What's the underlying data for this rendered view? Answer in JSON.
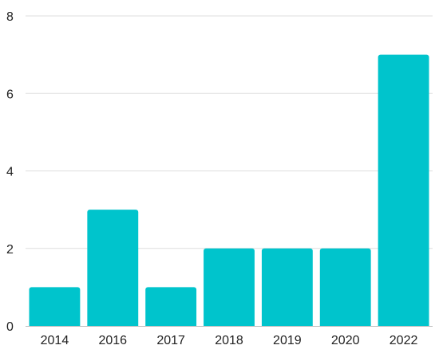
{
  "chart_data": {
    "type": "bar",
    "title": "",
    "xlabel": "",
    "ylabel": "",
    "categories": [
      "2014",
      "2016",
      "2017",
      "2018",
      "2019",
      "2020",
      "2022"
    ],
    "values": [
      1,
      3,
      1,
      2,
      2,
      2,
      7
    ],
    "ylim": [
      0,
      8
    ],
    "yticks": [
      0,
      2,
      4,
      6,
      8
    ],
    "grid": true,
    "legend": "none",
    "bar_color": "#00c4cc"
  }
}
